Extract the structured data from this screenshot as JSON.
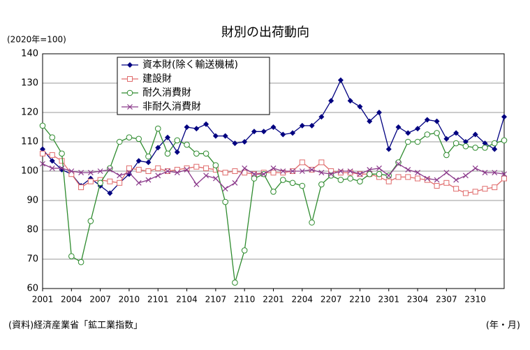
{
  "chart_data": {
    "type": "line",
    "title": "財別の出荷動向",
    "y_unit_label": "(2020年=100)",
    "source": "(資料)経済産業省「鉱工業指数」",
    "x_axis_label": "(年・月)",
    "categories": [
      "2001",
      null,
      null,
      "2004",
      null,
      null,
      "2007",
      null,
      null,
      "2010",
      null,
      null,
      "2101",
      null,
      null,
      "2104",
      null,
      null,
      "2107",
      null,
      null,
      "2110",
      null,
      null,
      "2201",
      null,
      null,
      "2204",
      null,
      null,
      "2207",
      null,
      null,
      "2210",
      null,
      null,
      "2301",
      null,
      null,
      "2304",
      null,
      null,
      "2307",
      null,
      null,
      "2310",
      null,
      null,
      null
    ],
    "ylim": [
      60,
      140
    ],
    "yticks": [
      60,
      70,
      80,
      90,
      100,
      110,
      120,
      130,
      140
    ],
    "grid": true,
    "legend": "upper left",
    "series": [
      {
        "name": "資本財(除く輸送機械)",
        "color": "#000080",
        "marker": "diamond",
        "values": [
          107.5,
          103.5,
          100.5,
          99,
          95,
          97.5,
          95,
          92.5,
          96,
          99,
          103.5,
          103,
          108,
          111.5,
          106.5,
          115,
          114.5,
          116,
          112,
          112,
          109.5,
          110,
          113.5,
          113.5,
          115,
          112.5,
          113,
          115.5,
          115.5,
          118.5,
          124,
          131,
          124,
          122,
          117,
          120,
          107.5,
          115,
          113,
          114.5,
          117.5,
          117,
          111,
          113,
          110,
          112.5,
          109.5,
          107.5,
          118.5
        ]
      },
      {
        "name": "建設財",
        "color": "#e06c6c",
        "marker": "square",
        "values": [
          106,
          105.5,
          103.5,
          99,
          94.5,
          96.5,
          97,
          96.5,
          96,
          101,
          100.5,
          100,
          101,
          100,
          100.5,
          101,
          101.5,
          101,
          100.5,
          99.5,
          100,
          99.5,
          99,
          99.5,
          99.5,
          99.5,
          100,
          103,
          100.5,
          103,
          100,
          99.5,
          99.5,
          99,
          99,
          98,
          96.5,
          98,
          98,
          97.5,
          97,
          95,
          96,
          94,
          92.5,
          93,
          94,
          94.5,
          97.5
        ]
      },
      {
        "name": "耐久消費財",
        "color": "#2e8b2e",
        "marker": "circle",
        "values": [
          115.5,
          111.5,
          106,
          71,
          69,
          83,
          96,
          101,
          110,
          111.5,
          111,
          105,
          114.5,
          106,
          110.5,
          109,
          106,
          106,
          102,
          89.5,
          62,
          73,
          97.5,
          99,
          93,
          97,
          96,
          95,
          82.5,
          95.5,
          98.5,
          97,
          97.5,
          96.5,
          99,
          99,
          98.5,
          103,
          110,
          110,
          112.5,
          113,
          105.5,
          109.5,
          108.5,
          108,
          108,
          109.5,
          110.5
        ]
      },
      {
        "name": "非耐久消費財",
        "color": "#8b3a8b",
        "marker": "cross",
        "values": [
          102.5,
          101,
          101,
          100,
          99.5,
          99.5,
          100,
          100.5,
          98.5,
          99.5,
          96,
          97,
          98.5,
          100,
          99.5,
          100.5,
          95.5,
          98.5,
          97.5,
          94,
          96,
          101,
          99,
          99,
          101,
          100,
          100,
          100,
          100.5,
          99.5,
          99,
          100,
          100,
          99,
          100.5,
          101,
          98.5,
          102.5,
          100.5,
          99.5,
          97.5,
          97,
          99.5,
          97,
          98.5,
          101,
          99.5,
          99.5,
          99
        ]
      }
    ]
  }
}
